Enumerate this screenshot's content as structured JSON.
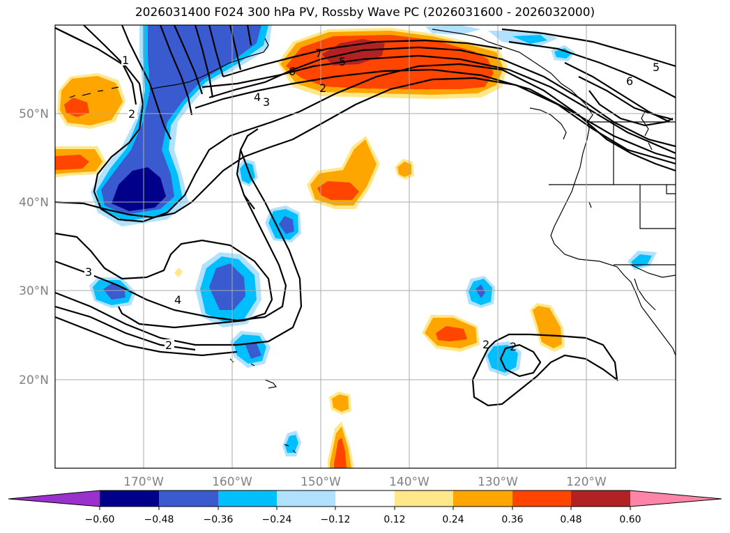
{
  "title": "2026031400 F024 300 hPa PV, Rossby Wave PC (2026031600 - 2026032000)",
  "map": {
    "lon_range": [
      -180,
      -110
    ],
    "lat_range": [
      10,
      60
    ],
    "lat_labels": [
      "50°N",
      "40°N",
      "30°N",
      "20°N"
    ],
    "lon_labels": [
      "170°W",
      "160°W",
      "150°W",
      "140°W",
      "130°W",
      "120°W"
    ],
    "contour_labels": [
      "1",
      "2",
      "7",
      "5",
      "6",
      "2",
      "4",
      "3",
      "6",
      "5",
      "3",
      "4",
      "2",
      "2",
      "2"
    ]
  },
  "colorbar": {
    "ticks": [
      "−0.60",
      "−0.48",
      "−0.36",
      "−0.24",
      "−0.12",
      "0.12",
      "0.24",
      "0.36",
      "0.48",
      "0.60"
    ],
    "colors": [
      "#9932cc",
      "#00008b",
      "#3a5bd0",
      "#00bfff",
      "#b0e2ff",
      "#ffffff",
      "#ffe88a",
      "#ffa500",
      "#ff4500",
      "#b22222",
      "#ff85a8"
    ]
  }
}
